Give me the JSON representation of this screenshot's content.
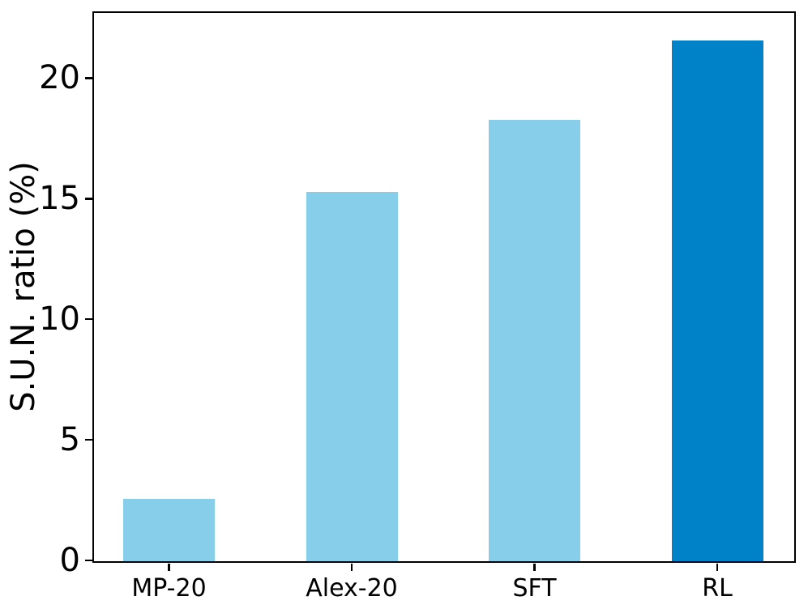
{
  "chart_data": {
    "type": "bar",
    "title": "",
    "categories": [
      "MP-20",
      "Alex-20",
      "SFT",
      "RL"
    ],
    "values": [
      2.6,
      15.3,
      18.3,
      21.6
    ],
    "bar_colors": [
      "#87CEEB",
      "#87CEEB",
      "#87CEEB",
      "#0082C8"
    ],
    "xlabel": "",
    "ylabel": "S.U.N. ratio (%)",
    "yticks": [
      0,
      5,
      10,
      15,
      20
    ],
    "ylim": [
      0,
      22.7
    ],
    "grid": false,
    "legend_position": "none",
    "axis_color": "#000000",
    "text_color": "#000000"
  }
}
